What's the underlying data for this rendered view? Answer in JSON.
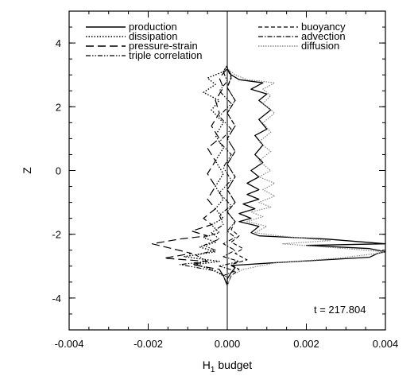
{
  "chart_data": {
    "type": "line",
    "xlabel": "H",
    "xlabel_sub": "1",
    "xlabel_suffix": " budget",
    "ylabel": "Z",
    "xlim": [
      -0.004,
      0.004
    ],
    "ylim": [
      -5,
      5
    ],
    "xticks": [
      "-0.004",
      "-0.002",
      "0.000",
      "0.002",
      "0.004"
    ],
    "yticks": [
      "-4",
      "-2",
      "0",
      "2",
      "4"
    ],
    "annotation": "t = 217.804",
    "legend_placement": "top",
    "series": [
      {
        "name": "production",
        "style": "solid",
        "points": [
          [
            0.0,
            -3.6
          ],
          [
            0.0,
            -3.4
          ],
          [
            0.0001,
            -3.2
          ],
          [
            0.0002,
            -3.05
          ],
          [
            0.0001,
            -2.98
          ],
          [
            0.0011,
            -2.9
          ],
          [
            0.0036,
            -2.72
          ],
          [
            0.0038,
            -2.6
          ],
          [
            0.004,
            -2.55
          ],
          [
            0.0036,
            -2.45
          ],
          [
            0.002,
            -2.35
          ],
          [
            0.004,
            -2.3
          ],
          [
            0.0025,
            -2.15
          ],
          [
            0.0008,
            -2.05
          ],
          [
            0.0006,
            -1.95
          ],
          [
            0.0008,
            -1.75
          ],
          [
            0.0003,
            -1.6
          ],
          [
            0.0006,
            -1.5
          ],
          [
            0.0003,
            -1.35
          ],
          [
            0.0007,
            -1.2
          ],
          [
            0.0004,
            -1.05
          ],
          [
            0.0008,
            -0.9
          ],
          [
            0.0005,
            -0.75
          ],
          [
            0.0008,
            -0.6
          ],
          [
            0.0005,
            -0.4
          ],
          [
            0.0008,
            -0.2
          ],
          [
            0.0006,
            0.0
          ],
          [
            0.0009,
            0.25
          ],
          [
            0.0007,
            0.5
          ],
          [
            0.0009,
            0.8
          ],
          [
            0.0007,
            1.1
          ],
          [
            0.001,
            1.3
          ],
          [
            0.0008,
            1.6
          ],
          [
            0.0011,
            1.9
          ],
          [
            0.0008,
            2.2
          ],
          [
            0.001,
            2.4
          ],
          [
            0.0006,
            2.55
          ],
          [
            0.0009,
            2.75
          ],
          [
            0.0003,
            2.85
          ],
          [
            0.0001,
            3.0
          ],
          [
            0.0,
            3.2
          ]
        ]
      },
      {
        "name": "dissipation",
        "style": "dotted",
        "points": [
          [
            0.0,
            -3.6
          ],
          [
            -0.0001,
            -3.3
          ],
          [
            -0.0004,
            -3.1
          ],
          [
            -0.0008,
            -2.95
          ],
          [
            -0.0002,
            -2.85
          ],
          [
            -0.0011,
            -2.7
          ],
          [
            -0.0003,
            -2.55
          ],
          [
            -0.0007,
            -2.4
          ],
          [
            -0.0003,
            -2.25
          ],
          [
            -0.0006,
            -2.1
          ],
          [
            -0.0002,
            -1.95
          ],
          [
            -0.0004,
            -1.7
          ],
          [
            -0.0001,
            -1.5
          ],
          [
            -0.0003,
            -1.2
          ],
          [
            -0.0001,
            -0.9
          ],
          [
            -0.0003,
            -0.5
          ],
          [
            -0.0001,
            -0.1
          ],
          [
            -0.0003,
            0.3
          ],
          [
            -0.0001,
            0.7
          ],
          [
            -0.0003,
            1.1
          ],
          [
            -0.0001,
            1.5
          ],
          [
            -0.0004,
            1.9
          ],
          [
            -0.0002,
            2.2
          ],
          [
            -0.0006,
            2.45
          ],
          [
            -0.0003,
            2.7
          ],
          [
            -0.0005,
            2.9
          ],
          [
            -0.0001,
            3.1
          ],
          [
            0.0,
            3.3
          ]
        ]
      },
      {
        "name": "pressure-strain",
        "style": "longdash",
        "points": [
          [
            0.0,
            -3.6
          ],
          [
            -0.0001,
            -3.3
          ],
          [
            -0.0002,
            -3.1
          ],
          [
            -0.0009,
            -2.95
          ],
          [
            -0.0005,
            -2.85
          ],
          [
            -0.0016,
            -2.75
          ],
          [
            -0.0009,
            -2.6
          ],
          [
            -0.0014,
            -2.45
          ],
          [
            -0.0019,
            -2.3
          ],
          [
            -0.0012,
            -2.15
          ],
          [
            -0.0005,
            -2.05
          ],
          [
            -0.0009,
            -1.9
          ],
          [
            -0.0004,
            -1.7
          ],
          [
            -0.0006,
            -1.5
          ],
          [
            -0.0003,
            -1.2
          ],
          [
            -0.0005,
            -0.9
          ],
          [
            -0.0003,
            -0.5
          ],
          [
            -0.0005,
            -0.1
          ],
          [
            -0.0003,
            0.3
          ],
          [
            -0.0005,
            0.7
          ],
          [
            -0.0002,
            1.0
          ],
          [
            -0.0004,
            1.4
          ],
          [
            -0.0002,
            1.8
          ],
          [
            -0.0003,
            2.2
          ],
          [
            -0.0001,
            2.6
          ],
          [
            -0.0002,
            2.9
          ],
          [
            0.0,
            3.2
          ]
        ]
      },
      {
        "name": "triple correlation",
        "style": "dashdotdot",
        "points": [
          [
            0.0,
            -3.6
          ],
          [
            0.0,
            -3.35
          ],
          [
            -0.0003,
            -3.15
          ],
          [
            -0.0012,
            -2.95
          ],
          [
            -0.0005,
            -2.85
          ],
          [
            -0.0008,
            -2.65
          ],
          [
            -0.0003,
            -2.5
          ],
          [
            -0.0006,
            -2.35
          ],
          [
            -0.0002,
            -2.15
          ],
          [
            -0.0004,
            -1.95
          ],
          [
            -0.0001,
            -1.7
          ],
          [
            -0.0002,
            -1.4
          ],
          [
            0.0001,
            -1.1
          ],
          [
            -0.0002,
            -0.7
          ],
          [
            0.0001,
            -0.3
          ],
          [
            -0.0001,
            0.1
          ],
          [
            0.0001,
            0.5
          ],
          [
            -0.0002,
            0.9
          ],
          [
            0.0001,
            1.3
          ],
          [
            -0.0002,
            1.7
          ],
          [
            0.0001,
            2.1
          ],
          [
            -0.0002,
            2.5
          ],
          [
            0.0,
            2.8
          ],
          [
            -0.0001,
            3.1
          ],
          [
            0.0,
            3.3
          ]
        ]
      },
      {
        "name": "buoyancy",
        "style": "dashed",
        "points": [
          [
            0.0,
            -3.6
          ],
          [
            0.0001,
            -3.3
          ],
          [
            0.0003,
            -3.1
          ],
          [
            0.0001,
            -2.95
          ],
          [
            0.0005,
            -2.8
          ],
          [
            0.0002,
            -2.6
          ],
          [
            0.0004,
            -2.45
          ],
          [
            0.0001,
            -2.25
          ],
          [
            0.0003,
            -2.05
          ],
          [
            0.0001,
            -1.85
          ],
          [
            0.0002,
            -1.6
          ],
          [
            0.0,
            -1.3
          ],
          [
            0.0002,
            -1.0
          ],
          [
            0.0,
            -0.6
          ],
          [
            0.0002,
            -0.2
          ],
          [
            0.0,
            0.2
          ],
          [
            0.0002,
            0.6
          ],
          [
            0.0,
            1.0
          ],
          [
            0.0002,
            1.4
          ],
          [
            0.0,
            1.8
          ],
          [
            0.0002,
            2.2
          ],
          [
            0.0,
            2.6
          ],
          [
            0.0001,
            2.9
          ],
          [
            0.0,
            3.2
          ]
        ]
      },
      {
        "name": "advection",
        "style": "dashdot",
        "points": [
          [
            0.0,
            -3.6
          ],
          [
            -0.0001,
            -3.3
          ],
          [
            0.0002,
            -3.15
          ],
          [
            -0.0002,
            -3.0
          ],
          [
            0.0003,
            -2.85
          ],
          [
            -0.0001,
            -2.7
          ],
          [
            0.0002,
            -2.5
          ],
          [
            -0.0001,
            -2.3
          ],
          [
            0.0002,
            -2.1
          ],
          [
            0.0,
            -1.9
          ],
          [
            0.0002,
            -1.6
          ],
          [
            0.0,
            -1.3
          ],
          [
            0.0002,
            -1.0
          ],
          [
            0.0,
            -0.6
          ],
          [
            0.0002,
            -0.2
          ],
          [
            0.0,
            0.2
          ],
          [
            0.0002,
            0.6
          ],
          [
            0.0,
            1.0
          ],
          [
            0.0002,
            1.4
          ],
          [
            0.0,
            1.8
          ],
          [
            0.0002,
            2.2
          ],
          [
            0.0,
            2.6
          ],
          [
            0.0001,
            2.95
          ],
          [
            0.0,
            3.25
          ]
        ]
      },
      {
        "name": "diffusion",
        "style": "lightdotted",
        "points": [
          [
            0.0,
            -3.6
          ],
          [
            0.0001,
            -3.3
          ],
          [
            0.0004,
            -3.1
          ],
          [
            0.0012,
            -2.9
          ],
          [
            0.0028,
            -2.75
          ],
          [
            0.0038,
            -2.6
          ],
          [
            0.004,
            -2.55
          ],
          [
            0.003,
            -2.45
          ],
          [
            0.0014,
            -2.3
          ],
          [
            0.0026,
            -2.2
          ],
          [
            0.0013,
            -2.05
          ],
          [
            0.0007,
            -1.95
          ],
          [
            0.001,
            -1.75
          ],
          [
            0.0005,
            -1.6
          ],
          [
            0.0009,
            -1.45
          ],
          [
            0.0006,
            -1.3
          ],
          [
            0.0011,
            -1.15
          ],
          [
            0.0008,
            -1.0
          ],
          [
            0.0012,
            -0.8
          ],
          [
            0.0009,
            -0.6
          ],
          [
            0.0012,
            -0.4
          ],
          [
            0.0008,
            -0.2
          ],
          [
            0.0011,
            0.0
          ],
          [
            0.0008,
            0.3
          ],
          [
            0.0011,
            0.6
          ],
          [
            0.0008,
            0.9
          ],
          [
            0.0011,
            1.2
          ],
          [
            0.0009,
            1.5
          ],
          [
            0.0012,
            1.8
          ],
          [
            0.0009,
            2.1
          ],
          [
            0.0011,
            2.35
          ],
          [
            0.0009,
            2.55
          ],
          [
            0.0012,
            2.75
          ],
          [
            0.0005,
            2.85
          ],
          [
            0.0002,
            3.0
          ],
          [
            0.0,
            3.2
          ]
        ]
      }
    ]
  }
}
